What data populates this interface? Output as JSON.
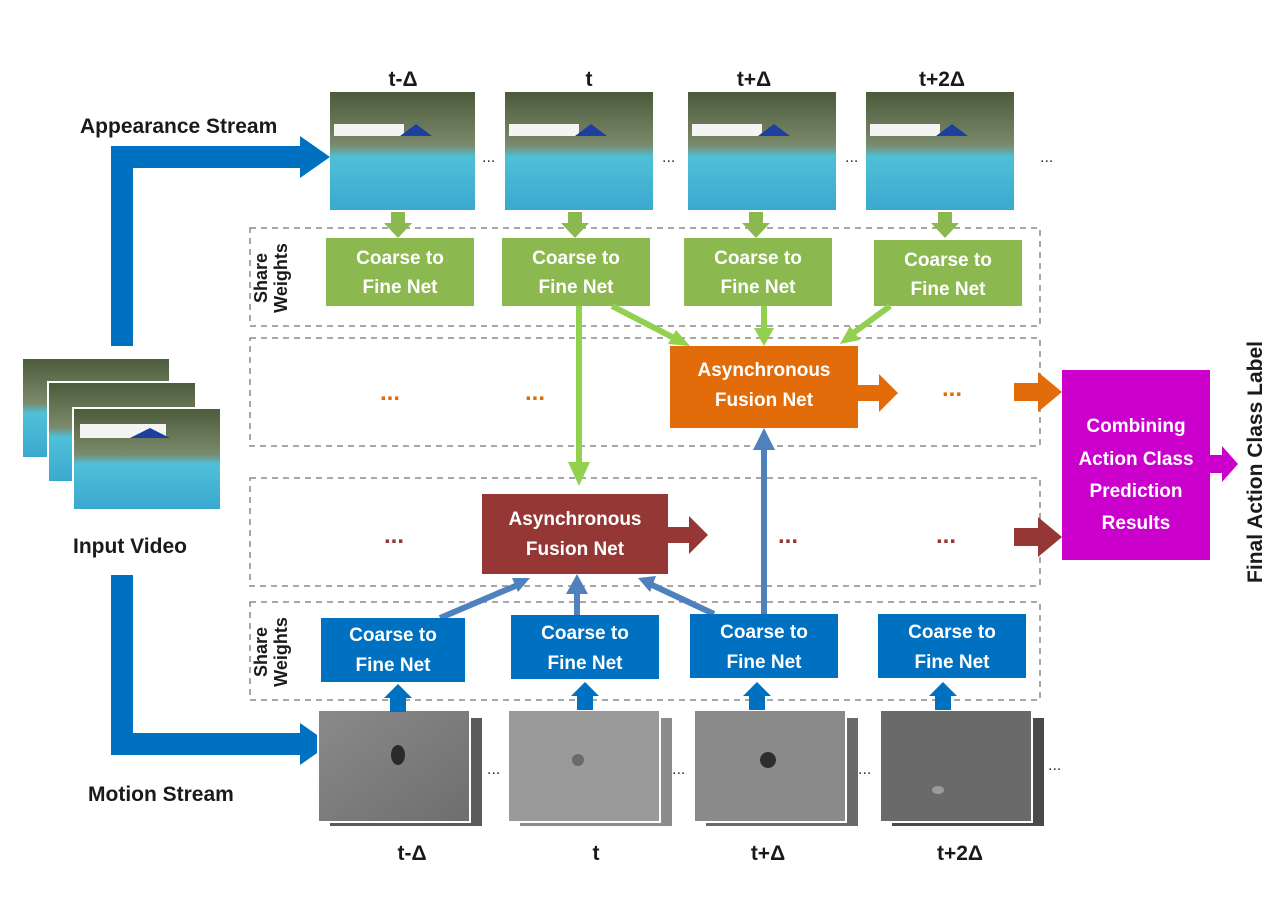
{
  "input_video_label": "Input Video",
  "appearance_stream_label": "Appearance Stream",
  "motion_stream_label": "Motion Stream",
  "share_weights_label": [
    "Share",
    "Weights"
  ],
  "final_label": "Final Action Class Label",
  "time_labels": [
    "t-Δ",
    "t",
    "t+Δ",
    "t+2Δ"
  ],
  "ellipsis": "...",
  "coarse_to_fine": [
    "Coarse to",
    "Fine Net"
  ],
  "async_fusion": [
    "Asynchronous",
    "Fusion Net"
  ],
  "combining": [
    "Combining",
    "Action Class",
    "Prediction",
    "Results"
  ],
  "colors": {
    "blue": "#0070c0",
    "green": "#8cb850",
    "orange": "#e36c0a",
    "darkred": "#953735",
    "magenta": "#cc00cc",
    "steelblue": "#4f81bd",
    "lightgreen": "#92d050"
  }
}
